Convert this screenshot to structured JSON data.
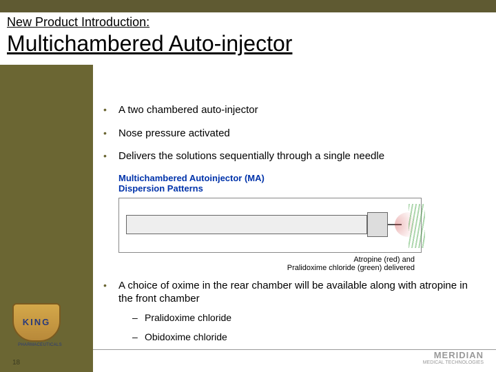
{
  "header": {
    "pretitle": "New Product Introduction:",
    "title": "Multichambered Auto-injector"
  },
  "bullets": [
    "A two chambered auto-injector",
    "Nose pressure activated",
    "Delivers the solutions sequentially through  a single needle",
    "A choice of oxime in the rear chamber will be available along with atropine in the front chamber"
  ],
  "sub_bullets": [
    "Pralidoxime chloride",
    "Obidoxime chloride"
  ],
  "diagram": {
    "title_line1": "Multichambered Autoinjector (MA)",
    "title_line2": "Dispersion Patterns",
    "caption_line1": "Atropine (red) and",
    "caption_line2": "Pralidoxime chloride (green) delivered",
    "title_color": "#0033aa",
    "body_color": "#eeeeee",
    "border_color": "#666666",
    "red_spray": "#c82828",
    "green_spray": "#3ca03c"
  },
  "logo": {
    "name": "KING",
    "sub": "PHARMACEUTICALS"
  },
  "page_number": "18",
  "footer": {
    "brand": "MERIDIAN",
    "sub": "MEDICAL TECHNOLOGIES"
  },
  "colors": {
    "olive": "#6b6633",
    "olive_dark": "#5f5a32"
  }
}
